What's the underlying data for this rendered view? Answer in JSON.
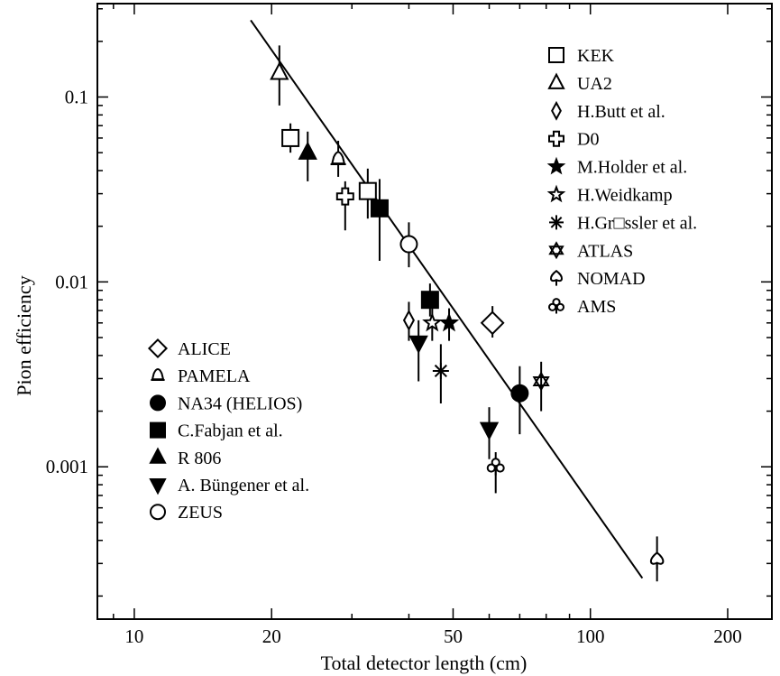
{
  "chart_data": {
    "type": "scatter",
    "xscale": "log",
    "yscale": "log",
    "xlim": [
      8.3,
      250
    ],
    "ylim": [
      0.00015,
      0.32
    ],
    "xlabel": "Total detector length (cm)",
    "ylabel": "Pion efficiency",
    "title": "",
    "x_ticks": [
      {
        "value": 10,
        "label": "10"
      },
      {
        "value": 20,
        "label": "20"
      },
      {
        "value": 50,
        "label": "50"
      },
      {
        "value": 100,
        "label": "100"
      },
      {
        "value": 200,
        "label": "200"
      }
    ],
    "y_ticks": [
      {
        "value": 0.1,
        "label": "0.1"
      },
      {
        "value": 0.01,
        "label": "0.01"
      },
      {
        "value": 0.001,
        "label": "0.001"
      }
    ],
    "grid": false,
    "legend_placement": [
      "top-right",
      "middle-left"
    ],
    "fit_line": {
      "x": [
        18,
        130
      ],
      "y": [
        0.26,
        0.00025
      ]
    },
    "series": [
      {
        "name": "KEK",
        "marker": "square-open",
        "points": [
          {
            "x": 22,
            "y": 0.06,
            "ylo": 0.05,
            "yhi": 0.072
          },
          {
            "x": 32.5,
            "y": 0.031,
            "ylo": 0.022,
            "yhi": 0.041
          }
        ]
      },
      {
        "name": "UA2",
        "marker": "triangle-up-open",
        "points": [
          {
            "x": 20.8,
            "y": 0.135,
            "ylo": 0.09,
            "yhi": 0.19
          }
        ]
      },
      {
        "name": "H.Butt et al.",
        "marker": "diamond-open-small",
        "points": [
          {
            "x": 40,
            "y": 0.0062,
            "ylo": 0.0048,
            "yhi": 0.0078
          }
        ]
      },
      {
        "name": "D0",
        "marker": "cross-open",
        "points": [
          {
            "x": 29,
            "y": 0.029,
            "ylo": 0.019,
            "yhi": 0.035
          }
        ]
      },
      {
        "name": "M.Holder et al.",
        "marker": "star-filled",
        "points": [
          {
            "x": 49,
            "y": 0.006,
            "ylo": 0.0048,
            "yhi": 0.0072
          }
        ]
      },
      {
        "name": "H.Weidkamp",
        "marker": "star-open",
        "points": [
          {
            "x": 45,
            "y": 0.006,
            "ylo": 0.0048,
            "yhi": 0.0072
          }
        ]
      },
      {
        "name": "H.Gr□ssler et al.",
        "marker": "asterisk",
        "points": [
          {
            "x": 47,
            "y": 0.0033,
            "ylo": 0.0022,
            "yhi": 0.0046
          }
        ]
      },
      {
        "name": "ATLAS",
        "marker": "hexagram",
        "points": [
          {
            "x": 78,
            "y": 0.0029,
            "ylo": 0.002,
            "yhi": 0.0037
          }
        ]
      },
      {
        "name": "NOMAD",
        "marker": "spade",
        "points": [
          {
            "x": 140,
            "y": 0.00031,
            "ylo": 0.00024,
            "yhi": 0.00042
          }
        ]
      },
      {
        "name": "AMS",
        "marker": "club",
        "points": [
          {
            "x": 62,
            "y": 0.001,
            "ylo": 0.00072,
            "yhi": 0.0012
          }
        ]
      },
      {
        "name": "ALICE",
        "marker": "diamond-open",
        "points": [
          {
            "x": 61,
            "y": 0.006,
            "ylo": 0.005,
            "yhi": 0.0074
          }
        ]
      },
      {
        "name": "PAMELA",
        "marker": "bell",
        "points": [
          {
            "x": 28,
            "y": 0.046,
            "ylo": 0.037,
            "yhi": 0.058
          }
        ]
      },
      {
        "name": "NA34 (HELIOS)",
        "marker": "circle-filled",
        "points": [
          {
            "x": 70,
            "y": 0.0025,
            "ylo": 0.0015,
            "yhi": 0.0035
          }
        ]
      },
      {
        "name": "C.Fabjan et al.",
        "marker": "square-filled",
        "points": [
          {
            "x": 34.5,
            "y": 0.025,
            "ylo": 0.013,
            "yhi": 0.036
          },
          {
            "x": 44.5,
            "y": 0.008,
            "ylo": 0.0065,
            "yhi": 0.0098
          }
        ]
      },
      {
        "name": "R 806",
        "marker": "triangle-up-filled",
        "points": [
          {
            "x": 24,
            "y": 0.05,
            "ylo": 0.035,
            "yhi": 0.065
          }
        ]
      },
      {
        "name": "A. Büngener et al.",
        "marker": "triangle-down-filled",
        "points": [
          {
            "x": 42,
            "y": 0.0047,
            "ylo": 0.0029,
            "yhi": 0.0062
          },
          {
            "x": 60,
            "y": 0.0016,
            "ylo": 0.0011,
            "yhi": 0.0021
          }
        ]
      },
      {
        "name": "ZEUS",
        "marker": "circle-open",
        "points": [
          {
            "x": 40,
            "y": 0.016,
            "ylo": 0.012,
            "yhi": 0.021
          }
        ]
      }
    ],
    "legend_groups": [
      [
        "KEK",
        "UA2",
        "H.Butt et al.",
        "D0",
        "M.Holder et al.",
        "H.Weidkamp",
        "H.Gr□ssler et al.",
        "ATLAS",
        "NOMAD",
        "AMS"
      ],
      [
        "ALICE",
        "PAMELA",
        "NA34 (HELIOS)",
        "C.Fabjan et al.",
        "R 806",
        "A. Büngener et al.",
        "ZEUS"
      ]
    ]
  }
}
